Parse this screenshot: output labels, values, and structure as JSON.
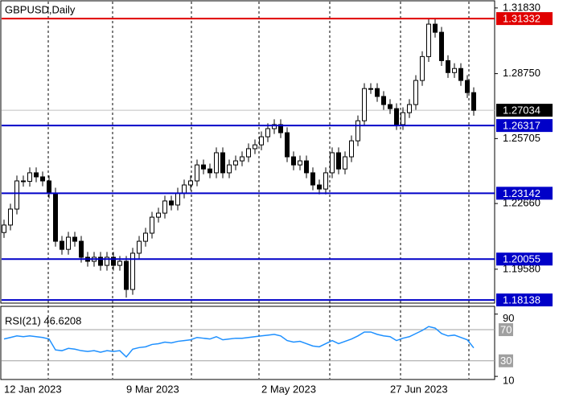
{
  "chart_data": {
    "type": "candlestick",
    "title": "GBPUSD,Daily",
    "categories": [
      "12 Jan 2023",
      null,
      null,
      null,
      null,
      null,
      null,
      null,
      null,
      null,
      null,
      null,
      null,
      null,
      null,
      null,
      null,
      null,
      null,
      "9 Mar 2023",
      null,
      null,
      null,
      null,
      null,
      null,
      null,
      null,
      null,
      null,
      null,
      null,
      null,
      null,
      null,
      null,
      null,
      null,
      null,
      null,
      "2 May 2023",
      null,
      null,
      null,
      null,
      null,
      null,
      null,
      null,
      null,
      null,
      null,
      null,
      null,
      null,
      null,
      null,
      null,
      null,
      null,
      "27 Jun 2023",
      null,
      null,
      null,
      null,
      null,
      null,
      null,
      null,
      null,
      null,
      null,
      null,
      null
    ],
    "open": [
      1.213,
      1.2165,
      1.224,
      1.2372,
      1.237,
      1.241,
      1.2391,
      1.2372,
      1.2315,
      1.2089,
      1.2051,
      1.2108,
      1.2089,
      1.2014,
      1.1995,
      1.2014,
      1.1976,
      1.2014,
      1.1976,
      1.1995,
      1.1863,
      1.2033,
      1.2089,
      1.2127,
      1.2202,
      1.2221,
      1.2278,
      1.2259,
      1.2315,
      1.2353,
      1.2372,
      1.2447,
      1.2428,
      1.241,
      1.2504,
      1.241,
      1.2447,
      1.2466,
      1.2485,
      1.2523,
      1.2541,
      1.2579,
      1.2617,
      1.2636,
      1.2598,
      1.2485,
      1.2447,
      1.2466,
      1.241,
      1.2353,
      1.2334,
      1.241,
      1.2504,
      1.2428,
      1.2485,
      1.256,
      1.2654,
      1.2805,
      1.2805,
      1.2768,
      1.273,
      1.2711,
      1.2636,
      1.2692,
      1.273,
      1.2843,
      1.2955,
      1.3107,
      1.3069,
      1.2936,
      1.288,
      1.2899,
      1.2843,
      1.2786
    ],
    "high": [
      1.219,
      1.2265,
      1.2397,
      1.2397,
      1.2435,
      1.2435,
      1.2416,
      1.2397,
      1.234,
      1.2114,
      1.2133,
      1.2133,
      1.2114,
      1.2039,
      1.2039,
      1.2039,
      1.2039,
      1.2039,
      1.202,
      1.202,
      1.2058,
      1.2114,
      1.2152,
      1.2227,
      1.2246,
      1.2303,
      1.2303,
      1.234,
      1.2378,
      1.2397,
      1.2472,
      1.2472,
      1.2453,
      1.2529,
      1.2529,
      1.2472,
      1.2491,
      1.251,
      1.2548,
      1.2566,
      1.2604,
      1.2642,
      1.2661,
      1.2661,
      1.2623,
      1.251,
      1.2491,
      1.2491,
      1.2435,
      1.2378,
      1.2435,
      1.2529,
      1.2529,
      1.251,
      1.2585,
      1.2679,
      1.283,
      1.283,
      1.283,
      1.2793,
      1.2755,
      1.2736,
      1.2717,
      1.2755,
      1.2868,
      1.298,
      1.3133,
      1.3132,
      1.3094,
      1.2961,
      1.2924,
      1.2924,
      1.2868,
      1.2811
    ],
    "low": [
      1.2105,
      1.214,
      1.2215,
      1.2345,
      1.2345,
      1.2366,
      1.2347,
      1.229,
      1.2064,
      1.2026,
      1.2026,
      1.2064,
      1.1989,
      1.197,
      1.197,
      1.1951,
      1.1951,
      1.1951,
      1.1951,
      1.1825,
      1.1838,
      1.2008,
      1.2064,
      1.2102,
      1.2177,
      1.2196,
      1.2234,
      1.2234,
      1.229,
      1.2328,
      1.2347,
      1.2403,
      1.2385,
      1.2385,
      1.2385,
      1.2385,
      1.2422,
      1.2441,
      1.246,
      1.2498,
      1.2516,
      1.2554,
      1.2592,
      1.2573,
      1.246,
      1.2422,
      1.2422,
      1.2385,
      1.2328,
      1.2309,
      1.2309,
      1.2385,
      1.2403,
      1.2403,
      1.246,
      1.2535,
      1.2629,
      1.278,
      1.2743,
      1.2705,
      1.2686,
      1.2611,
      1.2611,
      1.2667,
      1.2705,
      1.2818,
      1.293,
      1.3044,
      1.2911,
      1.2855,
      1.2855,
      1.2818,
      1.2761,
      1.2678
    ],
    "close": [
      1.2165,
      1.224,
      1.2372,
      1.237,
      1.241,
      1.2391,
      1.2372,
      1.2315,
      1.2089,
      1.2051,
      1.2108,
      1.2089,
      1.2014,
      1.1995,
      1.2014,
      1.1976,
      1.2014,
      1.1976,
      1.1995,
      1.1863,
      1.2033,
      1.2089,
      1.2127,
      1.2202,
      1.2221,
      1.2278,
      1.2259,
      1.2315,
      1.2353,
      1.2372,
      1.2447,
      1.2428,
      1.241,
      1.2504,
      1.241,
      1.2447,
      1.2466,
      1.2485,
      1.2523,
      1.2541,
      1.2579,
      1.2617,
      1.2636,
      1.2598,
      1.2485,
      1.2447,
      1.2466,
      1.241,
      1.2353,
      1.2334,
      1.241,
      1.2504,
      1.2428,
      1.2485,
      1.256,
      1.2654,
      1.2805,
      1.2805,
      1.2768,
      1.273,
      1.2711,
      1.2636,
      1.2692,
      1.273,
      1.2843,
      1.2955,
      1.3107,
      1.3069,
      1.2936,
      1.288,
      1.2899,
      1.2843,
      1.2786,
      1.2703
    ],
    "ylim": [
      1.1799,
      1.3209
    ],
    "yticks": [
      {
        "value": 1.3183,
        "label": "1.31830"
      },
      {
        "value": 1.2875,
        "label": "1.28750"
      },
      {
        "value": 1.25705,
        "label": "1.25705"
      },
      {
        "value": 1.2266,
        "label": "1.22660"
      },
      {
        "value": 1.1958,
        "label": "1.19580"
      }
    ],
    "levels": [
      {
        "value": 1.31332,
        "color": "#e00000"
      },
      {
        "value": 1.26317,
        "color": "#0000c8"
      },
      {
        "value": 1.23142,
        "color": "#0000c8"
      },
      {
        "value": 1.20055,
        "color": "#0000c8"
      },
      {
        "value": 1.18138,
        "color": "#0000c8"
      }
    ],
    "current_price": 1.27034,
    "indicator": {
      "type": "line",
      "title": "RSI(21) 46.6208",
      "color": "#1e90ff",
      "values": [
        58,
        60,
        62,
        61,
        62,
        61,
        60,
        58,
        44,
        43,
        46,
        45,
        43,
        42,
        43,
        41,
        43,
        42,
        43,
        35,
        45,
        47,
        48,
        51,
        52,
        54,
        53,
        55,
        56,
        57,
        60,
        59,
        58,
        61,
        57,
        58,
        59,
        59,
        60,
        61,
        62,
        63,
        64,
        62,
        56,
        54,
        55,
        52,
        49,
        48,
        52,
        56,
        52,
        55,
        58,
        62,
        67,
        67,
        64,
        62,
        61,
        56,
        59,
        61,
        65,
        69,
        74,
        72,
        65,
        62,
        63,
        60,
        57,
        46.6208
      ],
      "ylim": [
        6,
        100
      ],
      "yticks": [
        90,
        10
      ],
      "levels": [
        70,
        30
      ]
    }
  }
}
